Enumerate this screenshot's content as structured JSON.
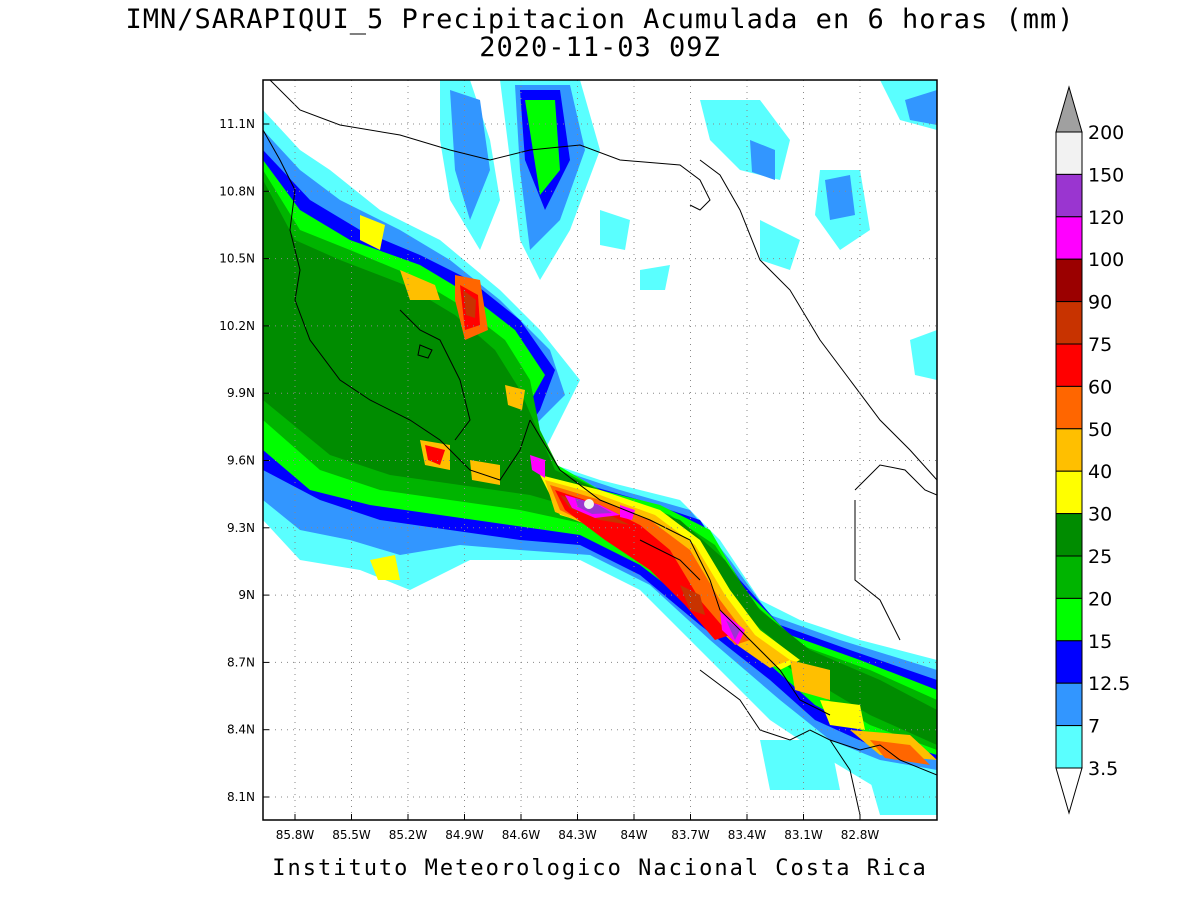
{
  "title": {
    "line1": "IMN/SARAPIQUI_5 Precipitacion Acumulada en 6 horas (mm)",
    "line2": "2020-11-03 09Z"
  },
  "footer": "Instituto Meteorologico Nacional Costa Rica",
  "axes": {
    "x_ticks": [
      "85.8W",
      "85.5W",
      "85.2W",
      "84.9W",
      "84.6W",
      "84.3W",
      "84W",
      "83.7W",
      "83.4W",
      "83.1W",
      "82.8W"
    ],
    "y_ticks": [
      "11.1N",
      "10.8N",
      "10.5N",
      "10.2N",
      "9.9N",
      "9.6N",
      "9.3N",
      "9N",
      "8.7N",
      "8.4N",
      "8.1N"
    ]
  },
  "legend": {
    "labels": [
      "200",
      "150",
      "120",
      "100",
      "90",
      "75",
      "60",
      "50",
      "40",
      "30",
      "25",
      "20",
      "15",
      "12.5",
      "7",
      "3.5"
    ],
    "colors": [
      "#a0a0a0",
      "#f2f2f2",
      "#9a35d0",
      "#ff00ff",
      "#9b0000",
      "#c83300",
      "#ff0000",
      "#ff6600",
      "#ffbf00",
      "#ffff00",
      "#008c00",
      "#00b400",
      "#00ff00",
      "#0000ff",
      "#3296ff",
      "#5affff",
      "#ffffff"
    ]
  }
}
